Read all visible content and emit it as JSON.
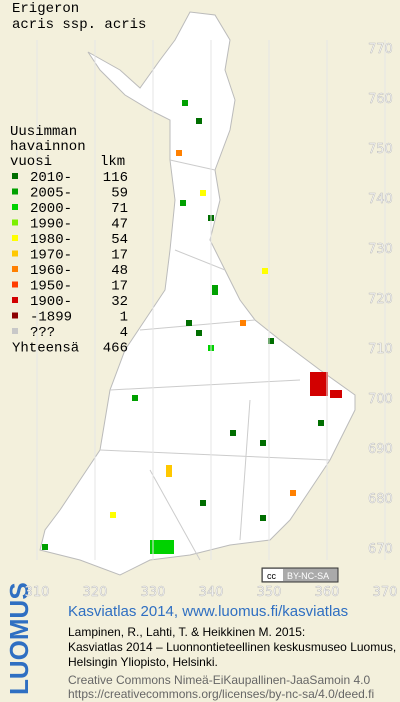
{
  "title": [
    "Erigeron",
    "acris ssp. acris"
  ],
  "legend": {
    "header": [
      "Uusimman",
      "havainnon",
      "vuosi"
    ],
    "count_header": "lkm",
    "rows": [
      {
        "label": "2010-",
        "count": 116,
        "color": "#006e00"
      },
      {
        "label": "2005-",
        "count": 59,
        "color": "#00a000"
      },
      {
        "label": "2000-",
        "count": 71,
        "color": "#00d200"
      },
      {
        "label": "1990-",
        "count": 47,
        "color": "#7cf000"
      },
      {
        "label": "1980-",
        "count": 54,
        "color": "#ffff00"
      },
      {
        "label": "1970-",
        "count": 17,
        "color": "#ffc800"
      },
      {
        "label": "1960-",
        "count": 48,
        "color": "#ff8000"
      },
      {
        "label": "1950-",
        "count": 17,
        "color": "#ff3c00"
      },
      {
        "label": "1900-",
        "count": 32,
        "color": "#d20000"
      },
      {
        "label": "-1899",
        "count": 1,
        "color": "#8c0000"
      },
      {
        "label": "???",
        "count": 4,
        "color": "#c8c8c8"
      }
    ],
    "total_label": "Yhteensä",
    "total": 466
  },
  "grid_y": [
    770,
    760,
    750,
    740,
    730,
    720,
    710,
    700,
    690,
    680,
    670
  ],
  "grid_x": [
    310,
    320,
    330,
    340,
    350,
    360,
    370
  ],
  "license_badge": "BY-NC-SA",
  "logo": "LUOMUS",
  "footer": {
    "link": "Kasviatlas 2014, www.luomus.fi/kasviatlas",
    "citation": [
      "Lampinen, R., Lahti, T. & Heikkinen M. 2015:",
      "Kasviatlas 2014 – Luonnontieteellinen keskusmuseo Luomus,",
      "Helsingin Yliopisto, Helsinki."
    ],
    "license": [
      "Creative Commons Nimeä-EiKaupallinen-JaaSamoin 4.0",
      "https://creativecommons.org/licenses/by-nc-sa/4.0/deed.fi"
    ]
  }
}
